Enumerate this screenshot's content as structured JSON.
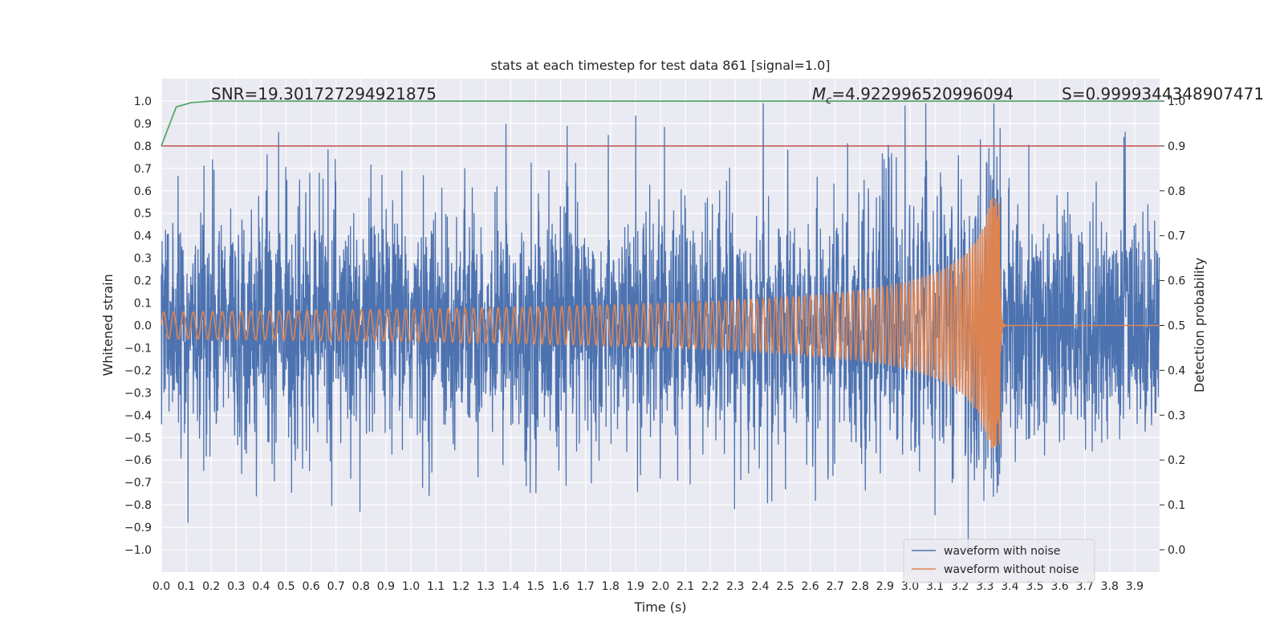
{
  "chart_data": {
    "type": "line",
    "title": "stats at each timestep for test data 861 [signal=1.0]",
    "xlabel": "Time (s)",
    "ylabel": "Whitened strain",
    "ylabel_right": "Detection probability",
    "xlim": [
      0.0,
      4.0
    ],
    "ylim": [
      -1.1,
      1.1
    ],
    "ylim_right": [
      -0.05,
      1.05
    ],
    "xticks": [
      "0.0",
      "0.1",
      "0.2",
      "0.3",
      "0.4",
      "0.5",
      "0.6",
      "0.7",
      "0.8",
      "0.9",
      "1.0",
      "1.1",
      "1.2",
      "1.3",
      "1.4",
      "1.5",
      "1.6",
      "1.7",
      "1.8",
      "1.9",
      "2.0",
      "2.1",
      "2.2",
      "2.3",
      "2.4",
      "2.5",
      "2.6",
      "2.7",
      "2.8",
      "2.9",
      "3.0",
      "3.1",
      "3.2",
      "3.3",
      "3.4",
      "3.5",
      "3.6",
      "3.7",
      "3.8",
      "3.9"
    ],
    "yticks": [
      "1.0",
      "0.9",
      "0.8",
      "0.7",
      "0.6",
      "0.5",
      "0.4",
      "0.3",
      "0.2",
      "0.1",
      "0.0",
      "−0.1",
      "−0.2",
      "−0.3",
      "−0.4",
      "−0.5",
      "−0.6",
      "−0.7",
      "−0.8",
      "−0.9",
      "−1.0"
    ],
    "yticks_right": [
      "1.0",
      "0.9",
      "0.8",
      "0.7",
      "0.6",
      "0.5",
      "0.4",
      "0.3",
      "0.2",
      "0.1",
      "0.0"
    ],
    "annotations": {
      "snr": "SNR=19.301727294921875",
      "mc_symbol": "M",
      "mc_sub": "c",
      "mc_value": "=4.922996520996094",
      "s": "S=0.9999344348907471"
    },
    "series": [
      {
        "name": "waveform with noise",
        "color": "#4c72b0",
        "kind": "noise",
        "amplitude_typical": 0.4,
        "peak_max": 0.99,
        "peak_min": -1.0
      },
      {
        "name": "waveform without noise",
        "color": "#dd8452",
        "kind": "chirp",
        "start_amplitude": 0.06,
        "merger_time": 3.36,
        "merger_amplitude": 0.57
      },
      {
        "name": "detection probability",
        "color": "#55a868",
        "axis": "right",
        "x": [
          0.0,
          0.06,
          0.12,
          0.2,
          4.0
        ],
        "y": [
          0.9,
          0.987,
          0.9965,
          0.9999,
          0.9999
        ]
      },
      {
        "name": "threshold",
        "color": "#c44e52",
        "axis": "right",
        "x": [
          0.0,
          4.0
        ],
        "y": [
          0.9,
          0.9
        ]
      }
    ],
    "legend": {
      "placement": "lower-right",
      "entries": [
        "waveform with noise",
        "waveform without noise"
      ]
    },
    "grid": true,
    "background": "#eaeaf2"
  }
}
